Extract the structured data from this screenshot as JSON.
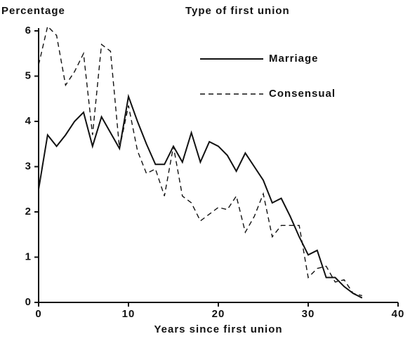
{
  "chart_data": {
    "type": "line",
    "y_label": "Percentage",
    "x_label": "Years since first union",
    "legend_title": "Type of first union",
    "legend": "upper right",
    "x": [
      0,
      1,
      2,
      3,
      4,
      5,
      6,
      7,
      8,
      9,
      10,
      11,
      12,
      13,
      14,
      15,
      16,
      17,
      18,
      19,
      20,
      21,
      22,
      23,
      24,
      25,
      26,
      27,
      28,
      29,
      30,
      31,
      32,
      33,
      34,
      35,
      36
    ],
    "series": [
      {
        "name": "Marriage",
        "color": "#111111",
        "style": "solid",
        "values": [
          2.5,
          3.7,
          3.45,
          3.7,
          4.0,
          4.2,
          3.45,
          4.1,
          3.75,
          3.4,
          4.55,
          4.0,
          3.5,
          3.05,
          3.05,
          3.45,
          3.1,
          3.75,
          3.1,
          3.55,
          3.45,
          3.25,
          2.9,
          3.3,
          3.0,
          2.7,
          2.2,
          2.3,
          1.9,
          1.45,
          1.05,
          1.15,
          0.55,
          0.55,
          0.35,
          0.2,
          0.1
        ]
      },
      {
        "name": "Consensual",
        "color": "#111111",
        "style": "dashed",
        "values": [
          5.25,
          6.1,
          5.9,
          4.8,
          5.1,
          5.5,
          3.7,
          5.7,
          5.55,
          3.4,
          4.35,
          3.35,
          2.85,
          2.95,
          2.35,
          3.45,
          2.35,
          2.2,
          1.8,
          1.95,
          2.1,
          2.05,
          2.35,
          1.55,
          1.9,
          2.4,
          1.45,
          1.7,
          1.7,
          1.7,
          0.55,
          0.75,
          0.8,
          0.45,
          0.5,
          0.2,
          0.15
        ]
      }
    ],
    "xlim": [
      0,
      40
    ],
    "xticks": [
      0,
      10,
      20,
      30,
      40
    ],
    "ylim": [
      0,
      6
    ],
    "yticks": [
      0,
      1,
      2,
      3,
      4,
      5,
      6
    ],
    "grid": false
  }
}
